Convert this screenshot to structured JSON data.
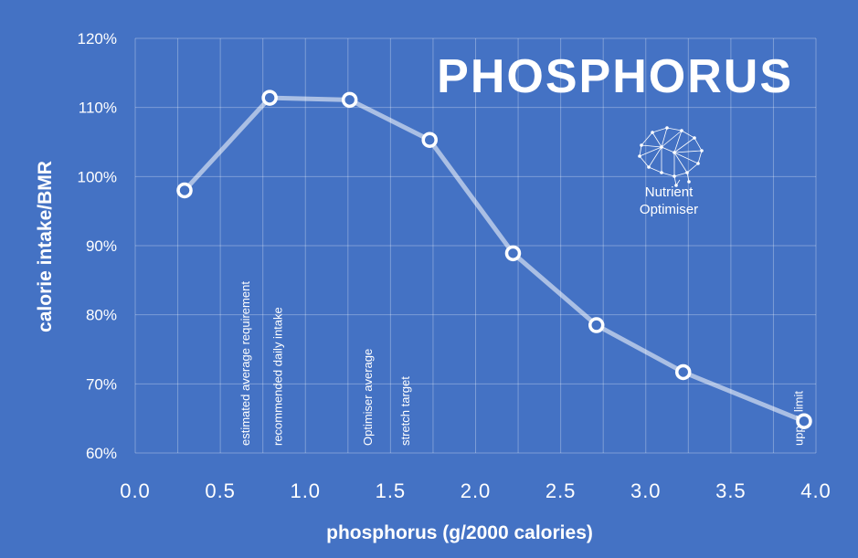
{
  "chart_data": {
    "type": "line",
    "title": "PHOSPHORUS",
    "xlabel": "phosphorus (g/2000 calories)",
    "ylabel": "calorie intake/BMR",
    "xlim": [
      0.0,
      4.0
    ],
    "ylim": [
      60,
      120
    ],
    "x_ticks": [
      "0.0",
      "0.5",
      "1.0",
      "1.5",
      "2.0",
      "2.5",
      "3.0",
      "3.5",
      "4.0"
    ],
    "y_ticks": [
      "60%",
      "70%",
      "80%",
      "90%",
      "100%",
      "110%",
      "120%"
    ],
    "grid": true,
    "x_grid_step": 0.25,
    "series": [
      {
        "x": [
          0.29,
          0.79,
          1.26,
          1.73,
          2.22,
          2.71,
          3.22,
          3.93
        ],
        "values": [
          98.0,
          111.4,
          111.1,
          105.3,
          88.9,
          78.5,
          71.7,
          64.6
        ]
      }
    ],
    "annotations": [
      {
        "text": "estimated average requirement",
        "x": 0.65
      },
      {
        "text": "recommended daily intake",
        "x": 0.84
      },
      {
        "text": "Optimiser average",
        "x": 1.37
      },
      {
        "text": "stretch target",
        "x": 1.59
      },
      {
        "text": "upper limit",
        "x": 3.9
      }
    ],
    "colors": {
      "background": "#4472C4",
      "text": "#FFFFFF",
      "line": "#FFFFFF"
    }
  },
  "logo": {
    "icon": "brain-network-icon",
    "line1": "Nutrient",
    "line2": "Optimiser"
  }
}
